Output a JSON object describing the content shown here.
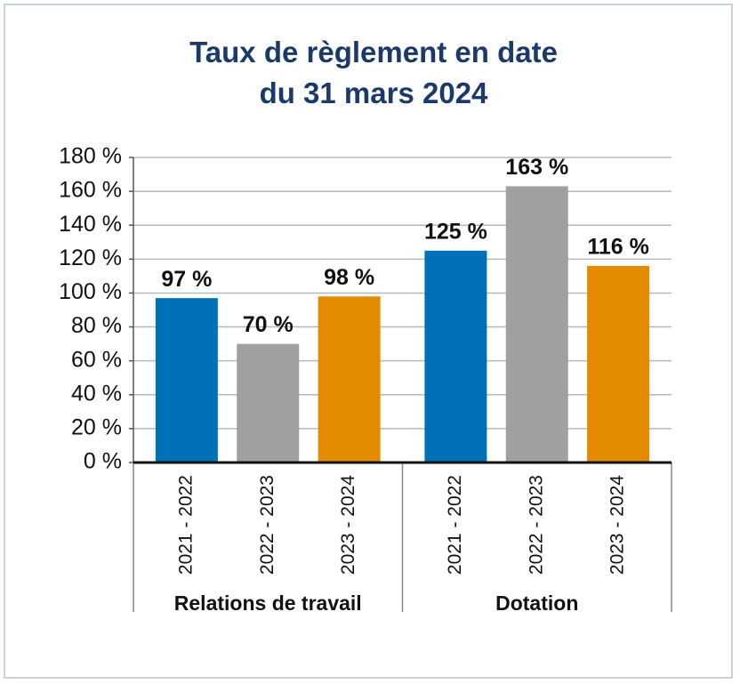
{
  "chart_data": {
    "type": "bar",
    "title": "Taux de règlement en date du 31 mars 2024",
    "categories": [
      "Relations de travail",
      "Dotation"
    ],
    "series": [
      {
        "name": "2021 - 2022",
        "color": "#0070b8",
        "values": [
          97,
          125
        ],
        "value_labels": [
          "97 %",
          "125 %"
        ]
      },
      {
        "name": "2022 - 2023",
        "color": "#a0a0a0",
        "values": [
          70,
          163
        ],
        "value_labels": [
          "70 %",
          "163 %"
        ]
      },
      {
        "name": "2023 - 2024",
        "color": "#e28a00",
        "values": [
          98,
          116
        ],
        "value_labels": [
          "98 %",
          "116 %"
        ]
      }
    ],
    "ylim": [
      0,
      180
    ],
    "yticks": [
      {
        "value": 0,
        "label": "0 %"
      },
      {
        "value": 20,
        "label": "20 %"
      },
      {
        "value": 40,
        "label": "40 %"
      },
      {
        "value": 60,
        "label": "60 %"
      },
      {
        "value": 80,
        "label": "80 %"
      },
      {
        "value": 100,
        "label": "100 %"
      },
      {
        "value": 120,
        "label": "120 %"
      },
      {
        "value": 140,
        "label": "140 %"
      },
      {
        "value": 160,
        "label": "160 %"
      },
      {
        "value": 180,
        "label": "180 %"
      }
    ],
    "grid": true
  }
}
